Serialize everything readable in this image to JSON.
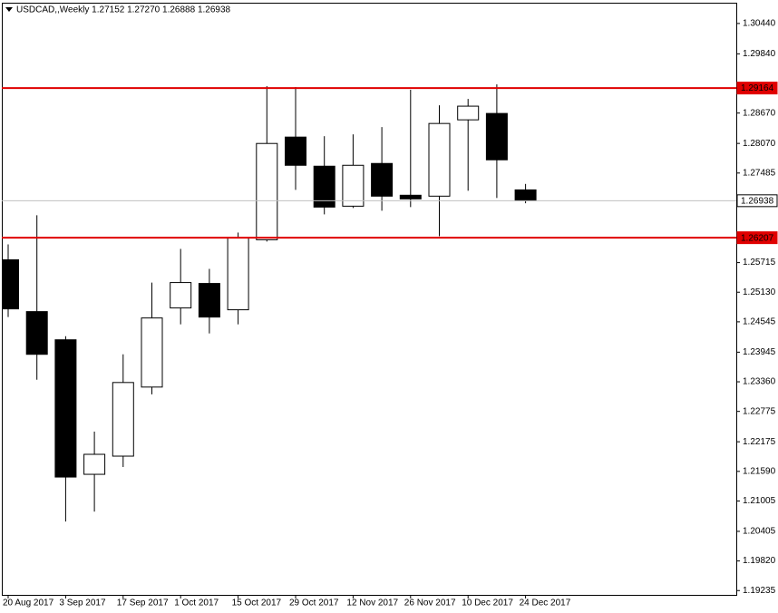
{
  "chart_data": {
    "type": "candlestick",
    "title": "USDCAD,,Weekly  1.27152 1.27270 1.26888 1.26938",
    "categories": [
      "20 Aug 2017",
      null,
      "3 Sep 2017",
      null,
      "17 Sep 2017",
      null,
      "1 Oct 2017",
      null,
      "15 Oct 2017",
      null,
      "29 Oct 2017",
      null,
      "12 Nov 2017",
      null,
      "26 Nov 2017",
      null,
      "10 Dec 2017",
      null,
      "24 Dec 2017"
    ],
    "series": [
      {
        "up_color": "#ffffff",
        "down_color": "#000000",
        "open": [
          1.2577,
          1.24747,
          1.2419,
          1.21532,
          1.21891,
          1.23256,
          1.24819,
          1.25303,
          1.24783,
          1.26166,
          1.28195,
          1.2762,
          1.2683,
          1.27674,
          1.27046,
          1.27028,
          1.28536,
          1.28662,
          1.27152
        ],
        "high": [
          1.26076,
          1.2665,
          1.24262,
          1.22376,
          1.23903,
          1.25321,
          1.25986,
          1.25591,
          1.26309,
          1.29201,
          1.29183,
          1.28213,
          1.28249,
          1.28393,
          1.29129,
          1.28824,
          1.28949,
          1.29237,
          1.2727
        ],
        "low": [
          1.24639,
          1.234,
          1.20598,
          1.20795,
          1.21676,
          1.23112,
          1.24495,
          1.24316,
          1.24495,
          1.2613,
          1.27153,
          1.26668,
          1.26794,
          1.2674,
          1.26812,
          1.26237,
          1.27135,
          1.26992,
          1.26888
        ],
        "close": [
          1.24801,
          1.23903,
          1.21478,
          1.21927,
          1.23346,
          1.24621,
          1.25321,
          1.24639,
          1.26201,
          1.28069,
          1.27638,
          1.26812,
          1.27638,
          1.27028,
          1.26974,
          1.28464,
          1.28806,
          1.27746,
          1.26938
        ]
      }
    ],
    "ylim": [
      1.1915,
      1.3085
    ],
    "yticks": [
      {
        "value": 1.3044,
        "label": "1.30440"
      },
      {
        "value": 1.2984,
        "label": "1.29840"
      },
      {
        "value": 1.2867,
        "label": "1.28670"
      },
      {
        "value": 1.2807,
        "label": "1.28070"
      },
      {
        "value": 1.27485,
        "label": "1.27485"
      },
      {
        "value": 1.25715,
        "label": "1.25715"
      },
      {
        "value": 1.2513,
        "label": "1.25130"
      },
      {
        "value": 1.24545,
        "label": "1.24545"
      },
      {
        "value": 1.23945,
        "label": "1.23945"
      },
      {
        "value": 1.2336,
        "label": "1.23360"
      },
      {
        "value": 1.22775,
        "label": "1.22775"
      },
      {
        "value": 1.22175,
        "label": "1.22175"
      },
      {
        "value": 1.2159,
        "label": "1.21590"
      },
      {
        "value": 1.21005,
        "label": "1.21005"
      },
      {
        "value": 1.20405,
        "label": "1.20405"
      },
      {
        "value": 1.1982,
        "label": "1.19820"
      },
      {
        "value": 1.19235,
        "label": "1.19235"
      }
    ],
    "levels": [
      {
        "value": 1.29164,
        "color": "#e00000"
      },
      {
        "value": 1.26207,
        "color": "#e00000"
      },
      {
        "value": 1.26938,
        "color": "#c0c0c0"
      }
    ]
  }
}
